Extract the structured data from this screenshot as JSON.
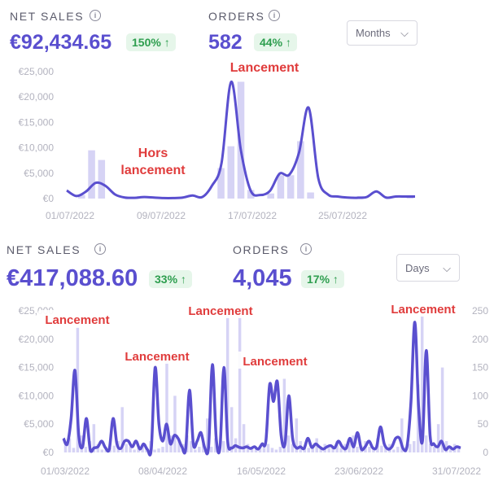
{
  "top": {
    "net_sales": {
      "label": "NET SALES",
      "value": "€92,434.65",
      "change": "150% ↑"
    },
    "orders": {
      "label": "ORDERS",
      "value": "582",
      "change": "44% ↑"
    },
    "period_select": "Months",
    "annotations": [
      "Lancement",
      "Hors",
      "lancement"
    ]
  },
  "bottom": {
    "net_sales": {
      "label": "NET SALES",
      "value": "€417,088.60",
      "change": "33% ↑"
    },
    "orders": {
      "label": "ORDERS",
      "value": "4,045",
      "change": "17% ↑"
    },
    "period_select": "Days",
    "annotations": [
      "Lancement",
      "Lancement",
      "Lancement",
      "Lancement",
      "Lancement"
    ]
  },
  "icons": {
    "info": "info-icon",
    "chevron": "chevron-down-icon",
    "trend": "arrow-up-icon"
  },
  "colors": {
    "accent": "#5a4fcf",
    "bar": "#d6d3f5",
    "annotation": "#e03c3c",
    "positive": "#2e9e4f",
    "positive_bg": "#e6f6ea"
  },
  "chart_data": [
    {
      "type": "line",
      "y_axis_labels": [
        "€25,000",
        "€20,000",
        "€15,000",
        "€10,000",
        "€5,000",
        "€0"
      ],
      "ylim": [
        0,
        25000
      ],
      "x_tick_labels": [
        "01/07/2022",
        "09/07/2022",
        "17/07/2022",
        "25/07/2022"
      ],
      "series": [
        {
          "type": "bar",
          "values": [
            0,
            700,
            9500,
            7600,
            0,
            0,
            0,
            0,
            0,
            0,
            0,
            0,
            0,
            0,
            0,
            6000,
            10300,
            23000,
            1700,
            0,
            1000,
            4600,
            4600,
            11300,
            1200,
            0,
            0,
            0,
            400,
            500,
            0,
            0,
            0,
            0,
            500
          ]
        },
        {
          "type": "line",
          "values": [
            1600,
            500,
            1400,
            3100,
            2500,
            800,
            200,
            150,
            300,
            200,
            100,
            100,
            200,
            600,
            300,
            2500,
            7000,
            23000,
            9500,
            1600,
            700,
            1500,
            4900,
            4700,
            9000,
            17900,
            4000,
            800,
            400,
            200,
            150,
            300,
            1400,
            200,
            400,
            400,
            400
          ]
        }
      ]
    },
    {
      "type": "line",
      "y_axis_labels": [
        "€25,000",
        "€20,000",
        "€15,000",
        "€10,000",
        "€5,000",
        "€0"
      ],
      "ylim": [
        0,
        25000
      ],
      "y2_axis_labels": [
        "250",
        "200",
        "150",
        "100",
        "50",
        "0"
      ],
      "y2lim": [
        0,
        250
      ],
      "x_tick_labels": [
        "01/03/2022",
        "08/04/2022",
        "16/05/2022",
        "23/06/2022",
        "31/07/2022"
      ],
      "series": [
        {
          "type": "bar",
          "values": [
            1500,
            2500,
            800,
            22000,
            3000,
            1000,
            2000,
            5000,
            1500,
            500,
            1000,
            800,
            1200,
            2000,
            8000,
            1500,
            1000,
            500,
            800,
            1200,
            1000,
            2000,
            500,
            700,
            1000,
            17000,
            3000,
            10000,
            2500,
            1500,
            3000,
            2000,
            500,
            1000,
            1500,
            6000,
            1000,
            2500,
            1000,
            2000,
            24000,
            8000,
            2500,
            24000,
            5000,
            1500,
            1000,
            800,
            1000,
            1200,
            1500,
            800,
            500,
            1000,
            13000,
            3000,
            1500,
            6000,
            2000,
            1000,
            800,
            1200,
            2500,
            1000,
            1500,
            800,
            1000,
            2000,
            800,
            1500,
            2000,
            3000,
            1000,
            1200,
            2000,
            1000,
            800,
            2500,
            1200,
            1000,
            1500,
            500,
            1000,
            6000,
            1000,
            1500,
            2000,
            12000,
            24000,
            3000,
            1500,
            1000,
            5000,
            15000,
            2000,
            1000,
            1500,
            1000
          ]
        },
        {
          "type": "line",
          "values": [
            2500,
            1500,
            6000,
            14500,
            3000,
            1000,
            6000,
            500,
            800,
            1000,
            2000,
            800,
            600,
            6000,
            1500,
            700,
            2000,
            2000,
            1000,
            2000,
            600,
            1500,
            500,
            700,
            15000,
            5000,
            2000,
            5000,
            1500,
            3000,
            2500,
            1000,
            600,
            11000,
            1500,
            2000,
            3500,
            800,
            1000,
            15500,
            2500,
            1000,
            15000,
            2000,
            800,
            1200,
            900,
            800,
            1000,
            700,
            1000,
            600,
            1500,
            2000,
            12000,
            9000,
            12500,
            3000,
            1500,
            10000,
            2500,
            800,
            1000,
            700,
            2500,
            900,
            1500,
            1000,
            600,
            1000,
            1200,
            800,
            2000,
            1000,
            700,
            2500,
            1000,
            3500,
            600,
            1000,
            2000,
            800,
            1000,
            4500,
            1500,
            600,
            1000,
            2500,
            2500,
            600,
            1200,
            9000,
            23000,
            8000,
            2000,
            18000,
            3000,
            1500,
            1000,
            2000,
            500,
            1000,
            600,
            1000,
            800
          ]
        }
      ]
    }
  ]
}
